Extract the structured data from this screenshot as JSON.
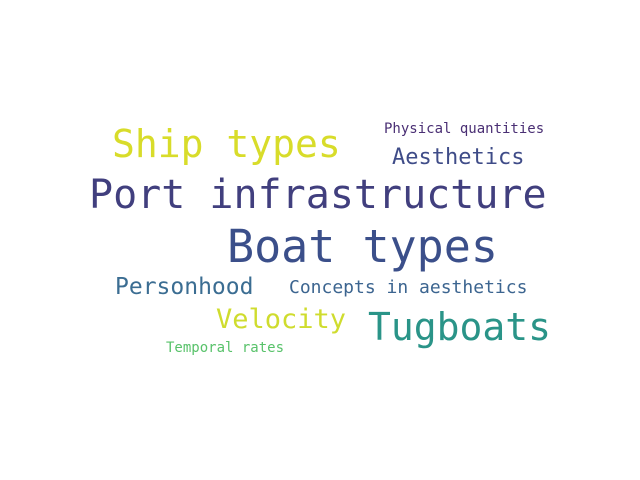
{
  "word_cloud": {
    "words": [
      {
        "text": "Boat types",
        "color": "#3b4f8a"
      },
      {
        "text": "Port infrastructure",
        "color": "#413f7e"
      },
      {
        "text": "Ship types",
        "color": "#d8dc2a"
      },
      {
        "text": "Tugboats",
        "color": "#2a9488"
      },
      {
        "text": "Aesthetics",
        "color": "#3f4c88"
      },
      {
        "text": "Physical quantities",
        "color": "#4a2f74"
      },
      {
        "text": "Personhood",
        "color": "#3b6d92"
      },
      {
        "text": "Concepts in aesthetics",
        "color": "#3c6590"
      },
      {
        "text": "Velocity",
        "color": "#cfdc2e"
      },
      {
        "text": "Temporal rates",
        "color": "#58c26a"
      }
    ]
  }
}
